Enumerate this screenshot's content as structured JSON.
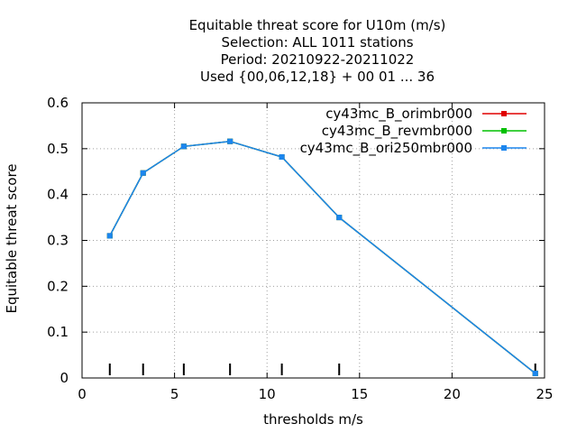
{
  "chart_data": {
    "type": "line",
    "title_lines": [
      "Equitable threat score  for U10m (m/s)",
      "Selection: ALL   1011 stations",
      "Period: 20210922-20211022",
      "Used {00,06,12,18} + 00 01 ... 36"
    ],
    "xlabel": "thresholds m/s",
    "ylabel": "Equitable threat score",
    "xlim": [
      0,
      25
    ],
    "ylim": [
      0,
      0.6
    ],
    "xticks": [
      0,
      5,
      10,
      15,
      20,
      25
    ],
    "yticks": [
      0,
      0.1,
      0.2,
      0.3,
      0.4,
      0.5,
      0.6
    ],
    "ytick_labels": [
      "0",
      "0.1",
      "0.2",
      "0.3",
      "0.4",
      "0.5",
      "0.6"
    ],
    "grid": true,
    "legend_position": "top-right",
    "threshold_markers": [
      1.5,
      3.3,
      5.5,
      8.0,
      10.8,
      13.9,
      24.5
    ],
    "x": [
      1.5,
      3.3,
      5.5,
      8.0,
      10.8,
      13.9,
      24.5
    ],
    "series": [
      {
        "name": "cy43mc_B_orimbr000",
        "color": "#e00000",
        "values": [
          0.31,
          0.447,
          0.505,
          0.516,
          0.482,
          0.35,
          0.01
        ]
      },
      {
        "name": "cy43mc_B_revmbr000",
        "color": "#00c000",
        "values": [
          0.31,
          0.447,
          0.505,
          0.516,
          0.482,
          0.35,
          0.01
        ]
      },
      {
        "name": "cy43mc_B_ori250mbr000",
        "color": "#1c86ee",
        "values": [
          0.31,
          0.447,
          0.505,
          0.516,
          0.482,
          0.35,
          0.01
        ]
      }
    ]
  }
}
